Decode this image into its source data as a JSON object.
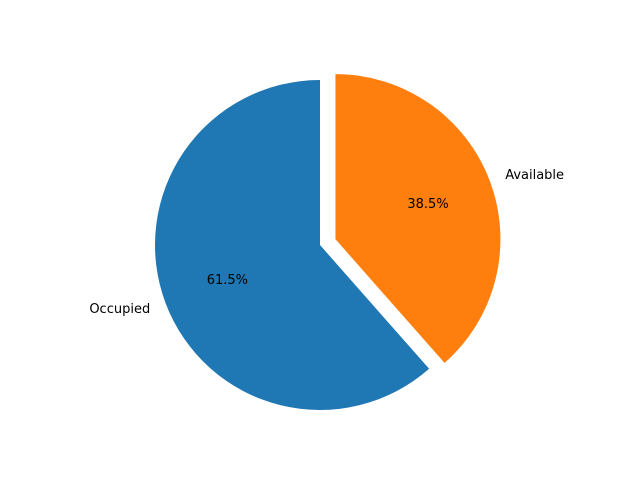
{
  "chart_data": {
    "type": "pie",
    "title": "",
    "slices": [
      {
        "label": "Occupied",
        "value": 61.5,
        "pct_label": "61.5%",
        "color": "#1f77b4",
        "explode": 0
      },
      {
        "label": "Available",
        "value": 38.5,
        "pct_label": "38.5%",
        "color": "#ff7f0e",
        "explode": 0.1
      }
    ],
    "start_angle_deg": 90,
    "direction": "counterclockwise"
  }
}
